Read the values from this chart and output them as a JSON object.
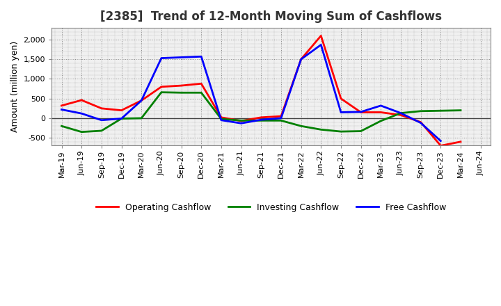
{
  "title": "[2385]  Trend of 12-Month Moving Sum of Cashflows",
  "ylabel": "Amount (million yen)",
  "background_color": "#ffffff",
  "plot_bg_color": "#f0f0f0",
  "grid_color": "#888888",
  "x_labels": [
    "Mar-19",
    "Jun-19",
    "Sep-19",
    "Dec-19",
    "Mar-20",
    "Jun-20",
    "Sep-20",
    "Dec-20",
    "Mar-21",
    "Jun-21",
    "Sep-21",
    "Dec-21",
    "Mar-22",
    "Jun-22",
    "Sep-22",
    "Dec-22",
    "Mar-23",
    "Jun-23",
    "Sep-23",
    "Dec-23",
    "Mar-24",
    "Jun-24"
  ],
  "operating_cashflow": [
    320,
    460,
    250,
    200,
    450,
    800,
    830,
    880,
    20,
    -70,
    20,
    50,
    1500,
    2100,
    500,
    150,
    150,
    80,
    -100,
    -700,
    -600,
    null
  ],
  "investing_cashflow": [
    -200,
    -350,
    -320,
    -10,
    0,
    660,
    650,
    650,
    -20,
    -60,
    -60,
    -60,
    -200,
    -290,
    -340,
    -330,
    -70,
    130,
    180,
    190,
    200,
    null
  ],
  "free_cashflow": [
    220,
    120,
    -50,
    -10,
    450,
    1530,
    1550,
    1570,
    -50,
    -130,
    -40,
    0,
    1500,
    1870,
    150,
    160,
    320,
    130,
    -120,
    -580,
    null,
    null
  ],
  "ylim": [
    -700,
    2300
  ],
  "title_fontsize": 12,
  "axis_fontsize": 9,
  "tick_fontsize": 8,
  "legend_fontsize": 9,
  "line_width": 2.0,
  "operating_color": "#ff0000",
  "investing_color": "#008000",
  "free_color": "#0000ff"
}
